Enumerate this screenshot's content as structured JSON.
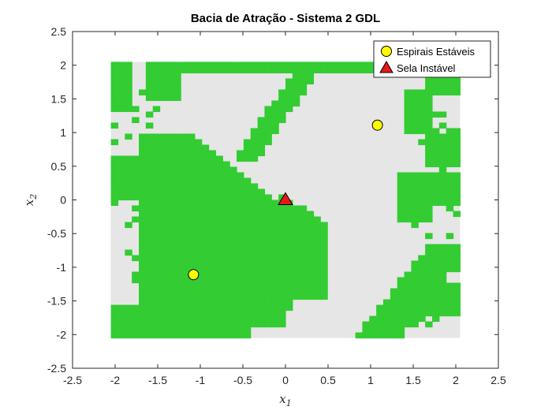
{
  "chart_data": {
    "type": "heatmap",
    "title": "Bacia de Atração - Sistema 2 GDL",
    "xlabel": "x",
    "xlabel_sub": "1",
    "ylabel": "x",
    "ylabel_sub": "2",
    "xlim": [
      -2.5,
      2.5
    ],
    "ylim": [
      -2.5,
      2.5
    ],
    "xticks": [
      -2.5,
      -2,
      -1.5,
      -1,
      -0.5,
      0,
      0.5,
      1,
      1.5,
      2,
      2.5
    ],
    "yticks": [
      -2.5,
      -2,
      -1.5,
      -1,
      -0.5,
      0,
      0.5,
      1,
      1.5,
      2,
      2.5
    ],
    "xtick_labels": [
      "-2.5",
      "-2",
      "-1.5",
      "-1",
      "-0.5",
      "0",
      "0.5",
      "1",
      "1.5",
      "2",
      "2.5"
    ],
    "ytick_labels": [
      "-2.5",
      "-2",
      "-1.5",
      "-1",
      "-0.5",
      "0",
      "0.5",
      "1",
      "1.5",
      "2",
      "2.5"
    ],
    "grid": false,
    "legend_position": "top-right",
    "grid_data": {
      "x_range": [
        -2.05,
        2.05
      ],
      "y_range": [
        -2.05,
        2.05
      ],
      "resolution": 0.082
    },
    "colors": {
      "basin_A": "#33cc33",
      "basin_B": "#e6e6e6",
      "stable": "#ffff00",
      "saddle": "#e61919"
    },
    "series": [
      {
        "name": "Espirais Estáveis",
        "marker": "circle",
        "color": "#ffff00",
        "points": [
          [
            1.08,
            1.11
          ],
          [
            -1.08,
            -1.11
          ]
        ]
      },
      {
        "name": "Sela Instável",
        "marker": "triangle",
        "color": "#e61919",
        "points": [
          [
            0,
            0
          ]
        ]
      }
    ]
  }
}
